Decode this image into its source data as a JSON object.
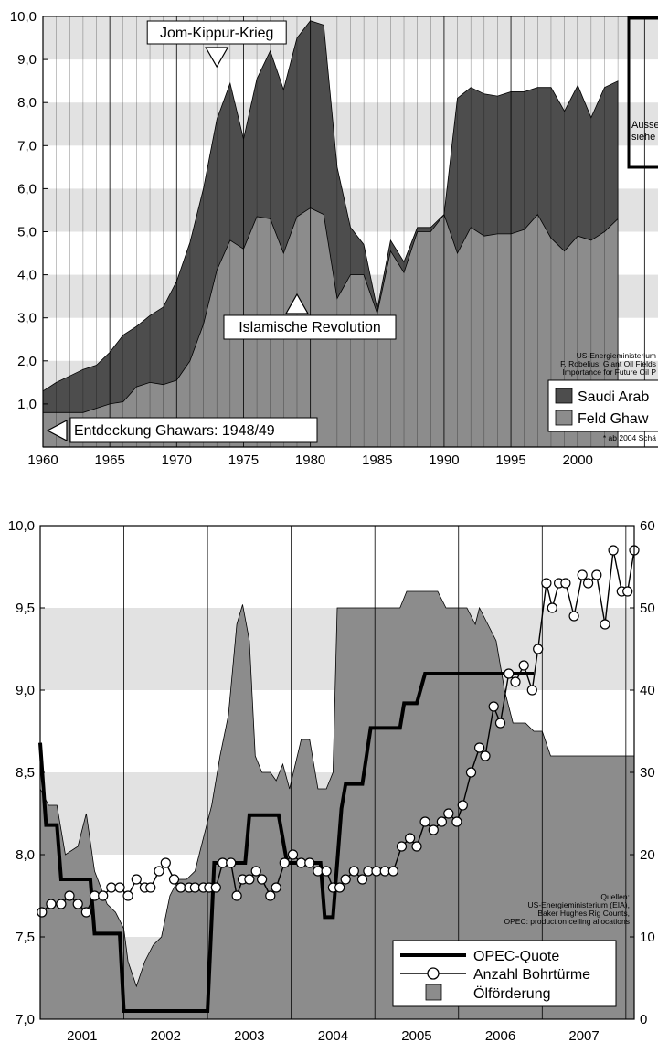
{
  "chart_data": [
    {
      "type": "area",
      "xlim": [
        1960,
        2006
      ],
      "ylim": [
        0,
        10
      ],
      "x_ticks": [
        "1960",
        "1965",
        "1970",
        "1975",
        "1980",
        "1985",
        "1990",
        "1995",
        "2000"
      ],
      "y_ticks": [
        "1,0",
        "2,0",
        "3,0",
        "4,0",
        "5,0",
        "6,0",
        "7,0",
        "8,0",
        "9,0",
        "10,0"
      ],
      "x": [
        1960,
        1961,
        1962,
        1963,
        1964,
        1965,
        1966,
        1967,
        1968,
        1969,
        1970,
        1971,
        1972,
        1973,
        1974,
        1975,
        1976,
        1977,
        1978,
        1979,
        1980,
        1981,
        1982,
        1983,
        1984,
        1985,
        1986,
        1987,
        1988,
        1989,
        1990,
        1991,
        1992,
        1993,
        1994,
        1995,
        1996,
        1997,
        1998,
        1999,
        2000,
        2001,
        2002,
        2003
      ],
      "series": [
        {
          "name": "Saudi Arab",
          "color": "#4d4d4d",
          "values": [
            1.3,
            1.5,
            1.65,
            1.8,
            1.9,
            2.2,
            2.6,
            2.8,
            3.05,
            3.25,
            3.85,
            4.75,
            6.0,
            7.6,
            8.45,
            7.15,
            8.55,
            9.2,
            8.3,
            9.5,
            9.9,
            9.8,
            6.5,
            5.1,
            4.7,
            3.2,
            4.8,
            4.3,
            5.1,
            5.1,
            5.4,
            8.1,
            8.35,
            8.2,
            8.15,
            8.25,
            8.25,
            8.35,
            8.35,
            7.8,
            8.4,
            7.65,
            8.35,
            8.5
          ]
        },
        {
          "name": "Feld Ghaw",
          "color": "#8c8c8c",
          "values": [
            0.8,
            0.8,
            0.8,
            0.8,
            0.9,
            1.0,
            1.05,
            1.4,
            1.5,
            1.45,
            1.55,
            2.0,
            2.85,
            4.1,
            4.8,
            4.6,
            5.35,
            5.3,
            4.5,
            5.35,
            5.55,
            5.4,
            3.45,
            4.0,
            4.0,
            3.1,
            4.55,
            4.05,
            5.0,
            5.0,
            5.4,
            4.5,
            5.1,
            4.9,
            4.95,
            4.95,
            5.05,
            5.4,
            4.85,
            4.55,
            4.9,
            4.8,
            5.0,
            5.3
          ]
        }
      ],
      "annotations": [
        {
          "text": "Jom-Kippur-Krieg",
          "x": 1973,
          "marker": "down"
        },
        {
          "text": "Islamische Revolution",
          "x": 1979,
          "marker": "up"
        },
        {
          "text": "Entdeckung Ghawars: 1948/49",
          "x": 1960,
          "marker": "left"
        }
      ],
      "inset_text": [
        "Ausse",
        "siehe"
      ],
      "sources": [
        "US-Energieministerium",
        "F. Robelius: Giant Oil Fields",
        "Importance for Future Oil P"
      ],
      "footnote": "* ab 2004 Schä",
      "legend": [
        {
          "label": "Saudi Arab",
          "color": "#4d4d4d"
        },
        {
          "label": "Feld Ghaw",
          "color": "#8c8c8c"
        }
      ],
      "grid": "vertical lines yearly, alternating horizontal bands",
      "legend_position": "bottom-right"
    },
    {
      "type": "line",
      "xlim": [
        2000.5,
        2007.6
      ],
      "ylim_left": [
        7.0,
        10.0
      ],
      "ylim_right": [
        0,
        60
      ],
      "x_ticks": [
        "2001",
        "2002",
        "2003",
        "2004",
        "2005",
        "2006",
        "2007"
      ],
      "y_ticks_left": [
        "7,0",
        "7,5",
        "8,0",
        "8,5",
        "9,0",
        "9,5",
        "10,0"
      ],
      "y_ticks_right": [
        "0",
        "10",
        "20",
        "30",
        "40",
        "50",
        "60"
      ],
      "series": [
        {
          "name": "Ölförderung",
          "kind": "area",
          "axis": "left",
          "color": "#8c8c8c",
          "points": [
            [
              2000.5,
              8.4
            ],
            [
              2000.6,
              8.3
            ],
            [
              2000.7,
              8.3
            ],
            [
              2000.8,
              8.0
            ],
            [
              2000.95,
              8.05
            ],
            [
              2001.05,
              8.25
            ],
            [
              2001.15,
              7.9
            ],
            [
              2001.3,
              7.7
            ],
            [
              2001.4,
              7.65
            ],
            [
              2001.5,
              7.55
            ],
            [
              2001.55,
              7.35
            ],
            [
              2001.65,
              7.2
            ],
            [
              2001.75,
              7.35
            ],
            [
              2001.85,
              7.45
            ],
            [
              2001.95,
              7.5
            ],
            [
              2002.05,
              7.75
            ],
            [
              2002.15,
              7.85
            ],
            [
              2002.25,
              7.85
            ],
            [
              2002.35,
              7.9
            ],
            [
              2002.45,
              8.1
            ],
            [
              2002.55,
              8.3
            ],
            [
              2002.65,
              8.6
            ],
            [
              2002.75,
              8.85
            ],
            [
              2002.85,
              9.4
            ],
            [
              2002.92,
              9.52
            ],
            [
              2003.0,
              9.3
            ],
            [
              2003.07,
              8.6
            ],
            [
              2003.15,
              8.5
            ],
            [
              2003.25,
              8.5
            ],
            [
              2003.32,
              8.45
            ],
            [
              2003.4,
              8.55
            ],
            [
              2003.48,
              8.4
            ],
            [
              2003.55,
              8.55
            ],
            [
              2003.62,
              8.7
            ],
            [
              2003.72,
              8.7
            ],
            [
              2003.82,
              8.4
            ],
            [
              2003.92,
              8.4
            ],
            [
              2004.0,
              8.5
            ],
            [
              2004.05,
              9.5
            ],
            [
              2004.5,
              9.5
            ],
            [
              2004.8,
              9.5
            ],
            [
              2004.88,
              9.6
            ],
            [
              2005.1,
              9.6
            ],
            [
              2005.25,
              9.6
            ],
            [
              2005.35,
              9.5
            ],
            [
              2005.6,
              9.5
            ],
            [
              2005.7,
              9.4
            ],
            [
              2005.75,
              9.5
            ],
            [
              2005.85,
              9.4
            ],
            [
              2005.95,
              9.3
            ],
            [
              2006.05,
              9.0
            ],
            [
              2006.15,
              8.8
            ],
            [
              2006.3,
              8.8
            ],
            [
              2006.4,
              8.75
            ],
            [
              2006.5,
              8.75
            ],
            [
              2006.6,
              8.6
            ],
            [
              2007.6,
              8.6
            ]
          ]
        },
        {
          "name": "OPEC-Quote",
          "kind": "step",
          "axis": "left",
          "color": "#000000",
          "points": [
            [
              2000.5,
              8.68
            ],
            [
              2000.57,
              8.18
            ],
            [
              2000.7,
              8.18
            ],
            [
              2000.75,
              7.85
            ],
            [
              2001.1,
              7.85
            ],
            [
              2001.15,
              7.52
            ],
            [
              2001.45,
              7.52
            ],
            [
              2001.5,
              7.05
            ],
            [
              2002.5,
              7.05
            ],
            [
              2002.58,
              7.95
            ],
            [
              2002.95,
              7.95
            ],
            [
              2003.0,
              8.24
            ],
            [
              2003.35,
              8.24
            ],
            [
              2003.45,
              7.95
            ],
            [
              2003.85,
              7.95
            ],
            [
              2003.9,
              7.62
            ],
            [
              2004.0,
              7.62
            ],
            [
              2004.1,
              8.28
            ],
            [
              2004.15,
              8.43
            ],
            [
              2004.35,
              8.43
            ],
            [
              2004.45,
              8.77
            ],
            [
              2004.8,
              8.77
            ],
            [
              2004.85,
              8.92
            ],
            [
              2005.0,
              8.92
            ],
            [
              2005.1,
              9.1
            ],
            [
              2006.4,
              9.1
            ]
          ]
        },
        {
          "name": "Anzahl Bohrtürme",
          "kind": "line-markers",
          "axis": "right",
          "color": "#000000",
          "points": [
            [
              2000.52,
              13
            ],
            [
              2000.63,
              14
            ],
            [
              2000.75,
              14
            ],
            [
              2000.85,
              15
            ],
            [
              2000.95,
              14
            ],
            [
              2001.05,
              13
            ],
            [
              2001.15,
              15
            ],
            [
              2001.25,
              15
            ],
            [
              2001.35,
              16
            ],
            [
              2001.45,
              16
            ],
            [
              2001.55,
              15
            ],
            [
              2001.65,
              17
            ],
            [
              2001.75,
              16
            ],
            [
              2001.82,
              16
            ],
            [
              2001.92,
              18
            ],
            [
              2002.0,
              19
            ],
            [
              2002.1,
              17
            ],
            [
              2002.18,
              16
            ],
            [
              2002.28,
              16
            ],
            [
              2002.35,
              16
            ],
            [
              2002.45,
              16
            ],
            [
              2002.52,
              16
            ],
            [
              2002.6,
              16
            ],
            [
              2002.68,
              19
            ],
            [
              2002.78,
              19
            ],
            [
              2002.85,
              15
            ],
            [
              2002.92,
              17
            ],
            [
              2003.0,
              17
            ],
            [
              2003.08,
              18
            ],
            [
              2003.15,
              17
            ],
            [
              2003.25,
              15
            ],
            [
              2003.32,
              16
            ],
            [
              2003.42,
              19
            ],
            [
              2003.52,
              20
            ],
            [
              2003.62,
              19
            ],
            [
              2003.72,
              19
            ],
            [
              2003.82,
              18
            ],
            [
              2003.92,
              18
            ],
            [
              2004.0,
              16
            ],
            [
              2004.08,
              16
            ],
            [
              2004.15,
              17
            ],
            [
              2004.25,
              18
            ],
            [
              2004.35,
              17
            ],
            [
              2004.42,
              18
            ],
            [
              2004.52,
              18
            ],
            [
              2004.62,
              18
            ],
            [
              2004.72,
              18
            ],
            [
              2004.82,
              21
            ],
            [
              2004.92,
              22
            ],
            [
              2005.0,
              21
            ],
            [
              2005.1,
              24
            ],
            [
              2005.2,
              23
            ],
            [
              2005.3,
              24
            ],
            [
              2005.38,
              25
            ],
            [
              2005.48,
              24
            ],
            [
              2005.55,
              26
            ],
            [
              2005.65,
              30
            ],
            [
              2005.75,
              33
            ],
            [
              2005.82,
              32
            ],
            [
              2005.92,
              38
            ],
            [
              2006.0,
              36
            ],
            [
              2006.1,
              42
            ],
            [
              2006.18,
              41
            ],
            [
              2006.28,
              43
            ],
            [
              2006.38,
              40
            ],
            [
              2006.45,
              45
            ],
            [
              2006.55,
              53
            ],
            [
              2006.62,
              50
            ],
            [
              2006.7,
              53
            ],
            [
              2006.78,
              53
            ],
            [
              2006.88,
              49
            ],
            [
              2006.98,
              54
            ],
            [
              2007.05,
              53
            ],
            [
              2007.15,
              54
            ],
            [
              2007.25,
              48
            ],
            [
              2007.35,
              57
            ],
            [
              2007.45,
              52
            ],
            [
              2007.52,
              52
            ],
            [
              2007.6,
              57
            ]
          ]
        }
      ],
      "sources": [
        "Quellen:",
        "US-Energieministerium (EIA),",
        "Baker Hughes Rig Counts,",
        "OPEC: production ceiling allocations"
      ],
      "legend": [
        {
          "label": "OPEC-Quote"
        },
        {
          "label": "Anzahl Bohrtürme"
        },
        {
          "label": "Ölförderung"
        }
      ],
      "grid": "vertical lines yearly, alternating horizontal bands",
      "legend_position": "bottom-right"
    }
  ]
}
